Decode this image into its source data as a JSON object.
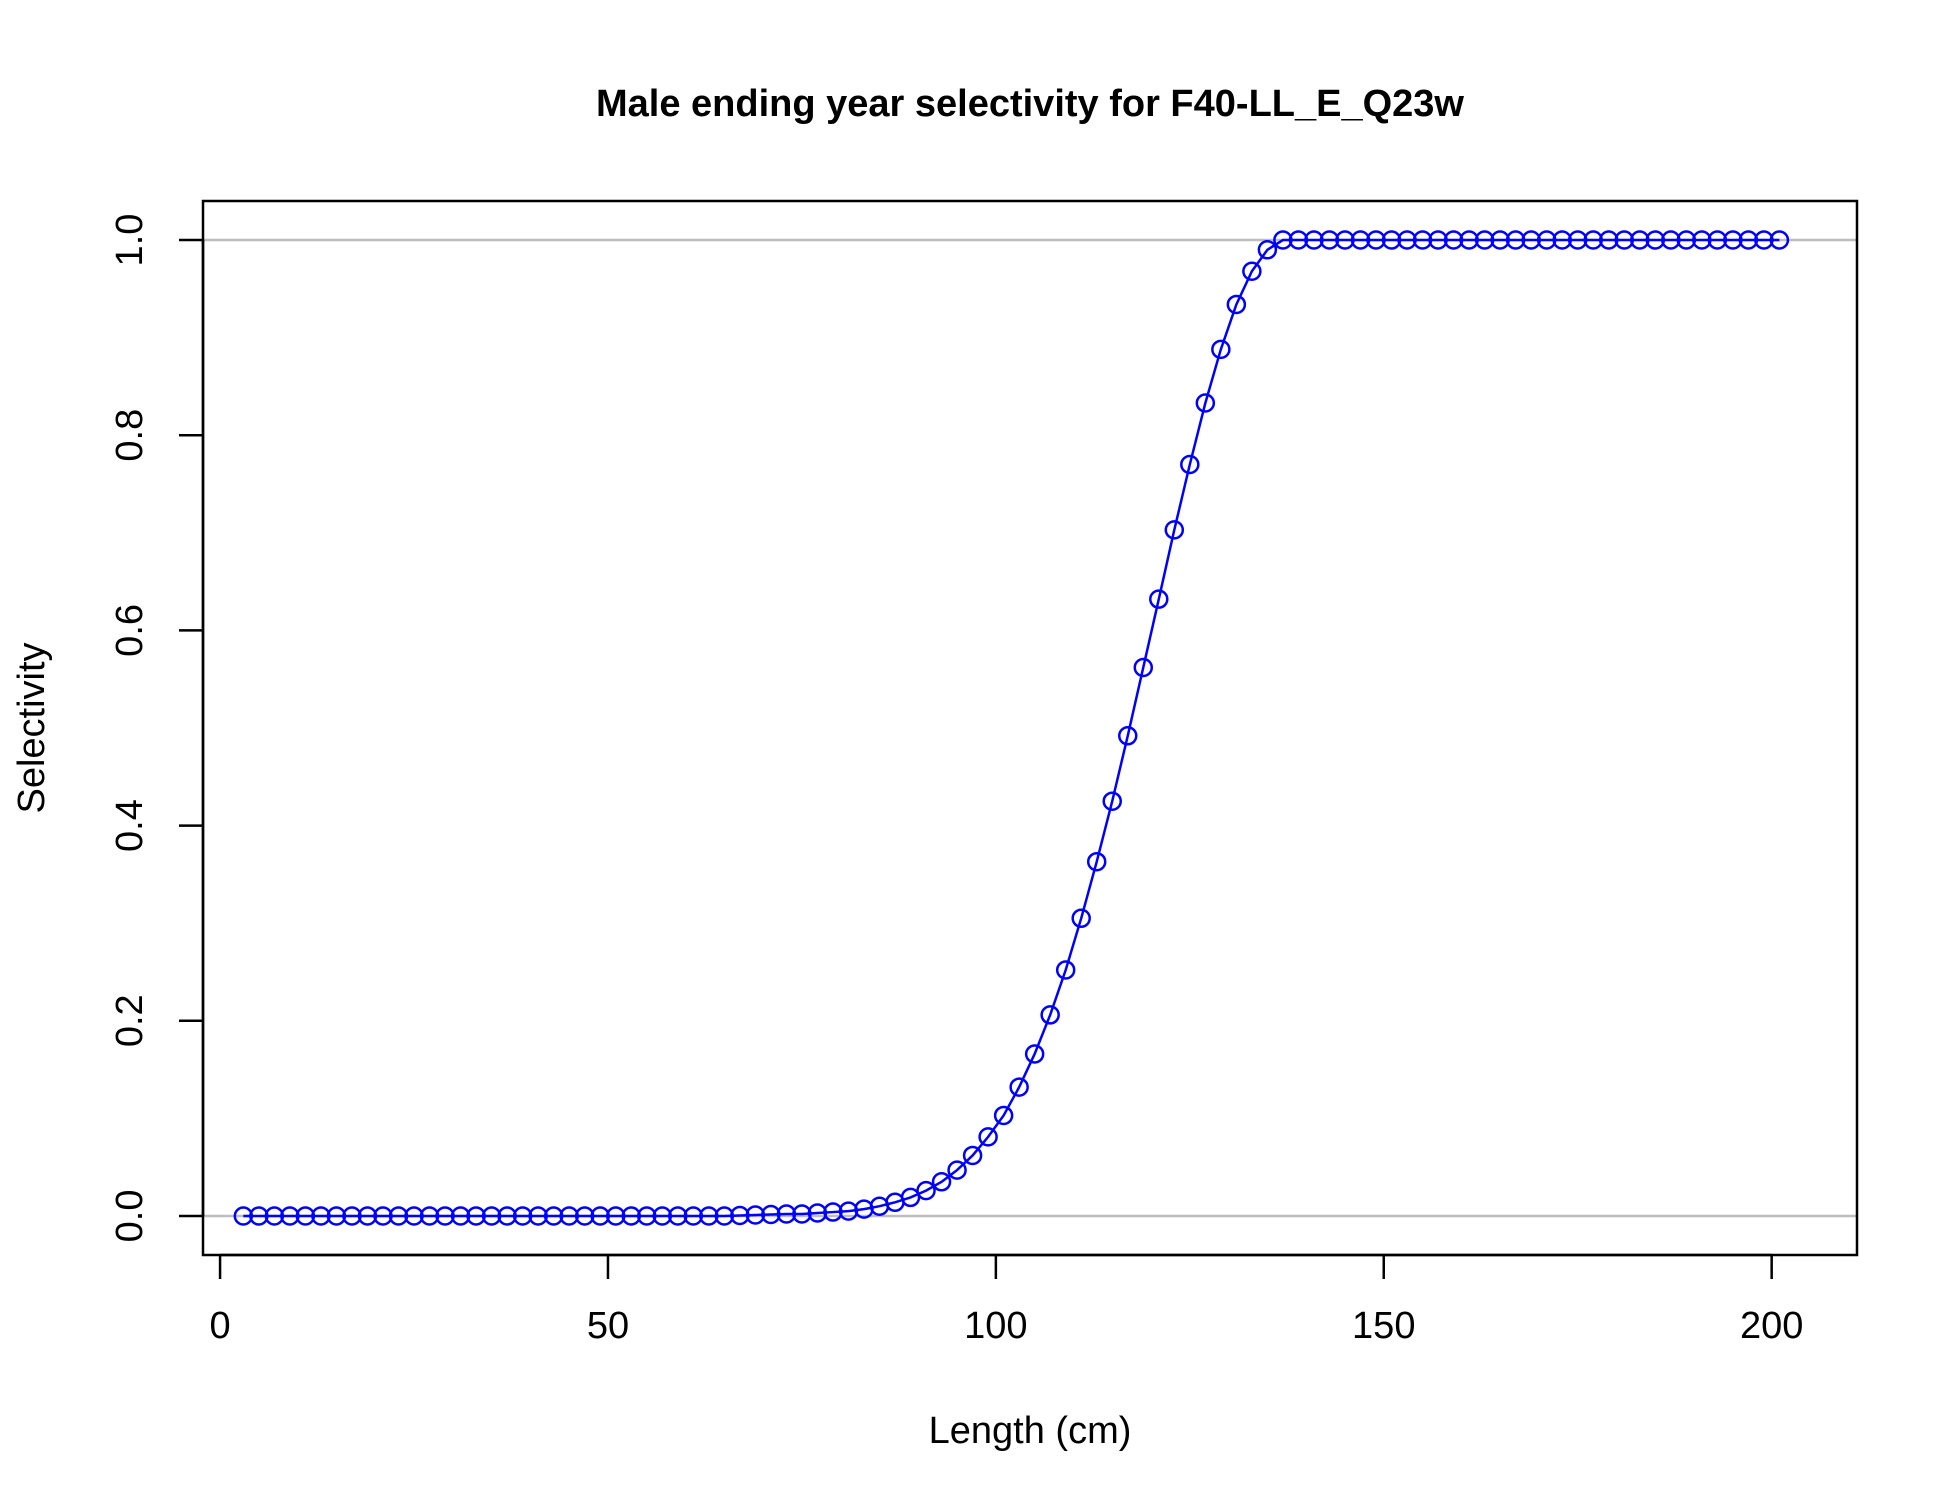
{
  "chart_data": {
    "type": "line",
    "title": "Male ending year selectivity for F40-LL_E_Q23w",
    "xlabel": "Length (cm)",
    "ylabel": "Selectivity",
    "xlim": [
      -2.2,
      211
    ],
    "ylim": [
      -0.04,
      1.04
    ],
    "x_ticks": [
      0,
      50,
      100,
      150,
      200
    ],
    "y_ticks": [
      0.0,
      0.2,
      0.4,
      0.6,
      0.8,
      1.0
    ],
    "x_tick_labels": [
      "0",
      "50",
      "100",
      "150",
      "200"
    ],
    "y_tick_labels": [
      "0.0",
      "0.2",
      "0.4",
      "0.6",
      "0.8",
      "1.0"
    ],
    "reference_lines_y": [
      0,
      1
    ],
    "grid": false,
    "series": [
      {
        "color": "#0000ff",
        "marker": "open-circle",
        "x": [
          3,
          5,
          7,
          9,
          11,
          13,
          15,
          17,
          19,
          21,
          23,
          25,
          27,
          29,
          31,
          33,
          35,
          37,
          39,
          41,
          43,
          45,
          47,
          49,
          51,
          53,
          55,
          57,
          59,
          61,
          63,
          65,
          67,
          69,
          71,
          73,
          75,
          77,
          79,
          81,
          83,
          85,
          87,
          89,
          91,
          93,
          95,
          97,
          99,
          101,
          103,
          105,
          107,
          109,
          111,
          113,
          115,
          117,
          119,
          121,
          123,
          125,
          127,
          129,
          131,
          133,
          135,
          137,
          139,
          141,
          143,
          145,
          147,
          149,
          151,
          153,
          155,
          157,
          159,
          161,
          163,
          165,
          167,
          169,
          171,
          173,
          175,
          177,
          179,
          181,
          183,
          185,
          187,
          189,
          191,
          193,
          195,
          197,
          199,
          201
        ],
        "y": [
          0,
          0,
          0,
          0,
          0,
          0,
          0,
          0,
          0,
          0,
          0,
          0,
          0,
          0,
          0,
          0,
          0,
          0,
          0,
          0,
          0,
          0,
          0,
          0,
          0,
          0,
          0,
          0,
          0,
          0,
          0,
          0,
          0.0005,
          0.001,
          0.0015,
          0.002,
          0.002,
          0.003,
          0.004,
          0.005,
          0.007,
          0.01,
          0.014,
          0.019,
          0.026,
          0.035,
          0.047,
          0.062,
          0.081,
          0.103,
          0.132,
          0.166,
          0.206,
          0.252,
          0.305,
          0.363,
          0.425,
          0.492,
          0.562,
          0.632,
          0.703,
          0.77,
          0.833,
          0.888,
          0.934,
          0.968,
          0.99,
          1,
          1,
          1,
          1,
          1,
          1,
          1,
          1,
          1,
          1,
          1,
          1,
          1,
          1,
          1,
          1,
          1,
          1,
          1,
          1,
          1,
          1,
          1,
          1,
          1,
          1,
          1,
          1,
          1,
          1,
          1,
          1,
          1
        ]
      }
    ]
  }
}
